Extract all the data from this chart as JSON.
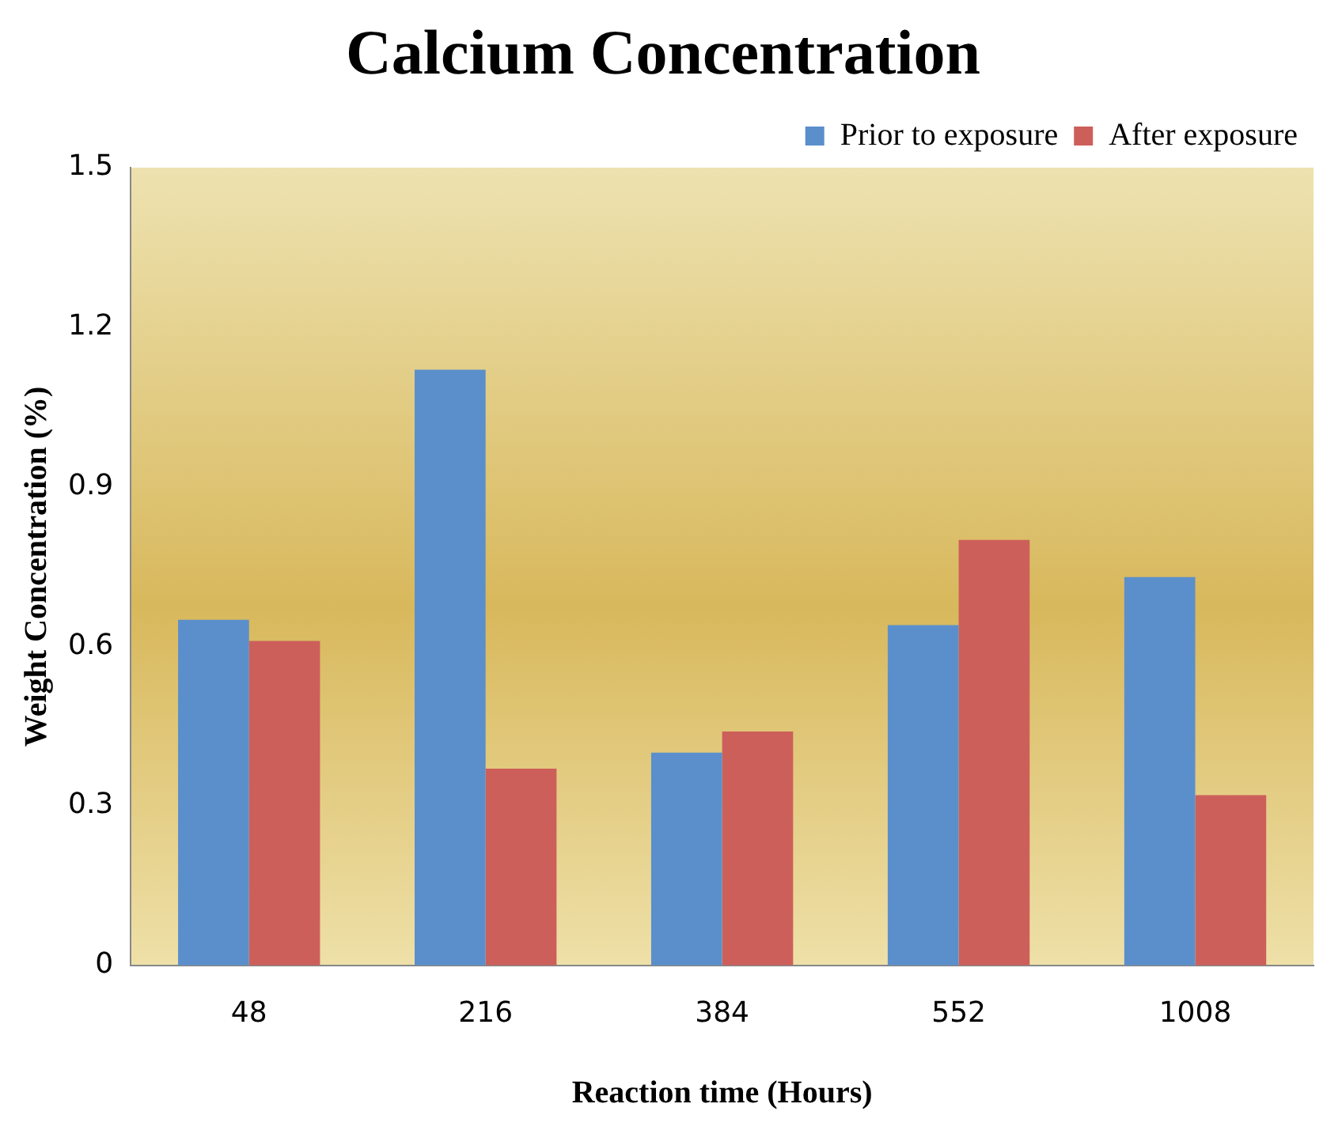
{
  "chart_data": {
    "type": "bar",
    "title": "Calcium Concentration",
    "xlabel": "Reaction time (Hours)",
    "ylabel": "Weight Concentration (%)",
    "categories": [
      "48",
      "216",
      "384",
      "552",
      "1008"
    ],
    "series": [
      {
        "name": "Prior to exposure",
        "color": "#5b8fcc",
        "values": [
          0.65,
          1.12,
          0.4,
          0.64,
          0.73
        ]
      },
      {
        "name": "After exposure",
        "color": "#cd5f5a",
        "values": [
          0.61,
          0.37,
          0.44,
          0.8,
          0.32
        ]
      }
    ],
    "ylim": [
      0,
      1.5
    ],
    "yticks": [
      0,
      0.3,
      0.6,
      0.9,
      1.2,
      1.5
    ],
    "grid": false,
    "legend": "top right"
  }
}
